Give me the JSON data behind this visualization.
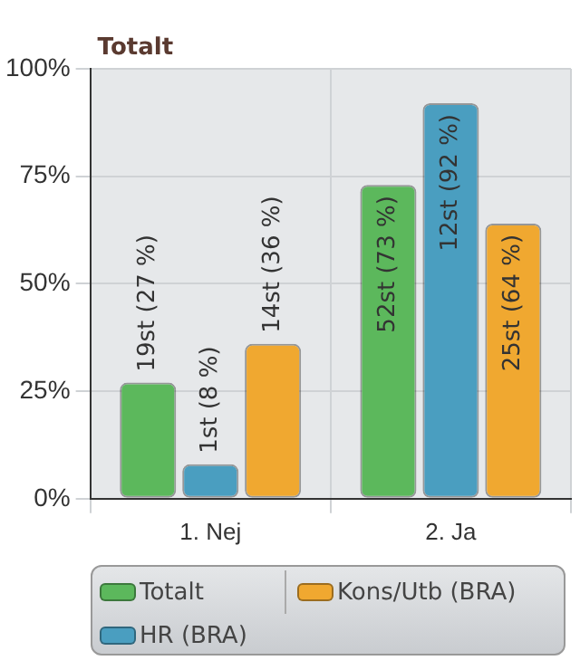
{
  "chart_data": {
    "type": "bar",
    "title": "Totalt",
    "categories": [
      "1. Nej",
      "2. Ja"
    ],
    "series": [
      {
        "name": "Totalt",
        "color": "#5cb85c",
        "values": [
          27,
          73
        ],
        "value_labels": [
          "19st (27 %)",
          "52st (73 %)"
        ]
      },
      {
        "name": "HR (BRA)",
        "color": "#4a9ec0",
        "values": [
          8,
          92
        ],
        "value_labels": [
          "1st (8 %)",
          "12st (92 %)"
        ]
      },
      {
        "name": "Kons/Utb (BRA)",
        "color": "#f0a830",
        "values": [
          36,
          64
        ],
        "value_labels": [
          "14st (36 %)",
          "25st (64 %)"
        ]
      }
    ],
    "ylim": [
      0,
      100
    ],
    "yticks": [
      {
        "value": 0,
        "label": "0%"
      },
      {
        "value": 25,
        "label": "25%"
      },
      {
        "value": 50,
        "label": "50%"
      },
      {
        "value": 75,
        "label": "75%"
      },
      {
        "value": 100,
        "label": "100%"
      }
    ],
    "grid": true,
    "legend": "bottom"
  }
}
